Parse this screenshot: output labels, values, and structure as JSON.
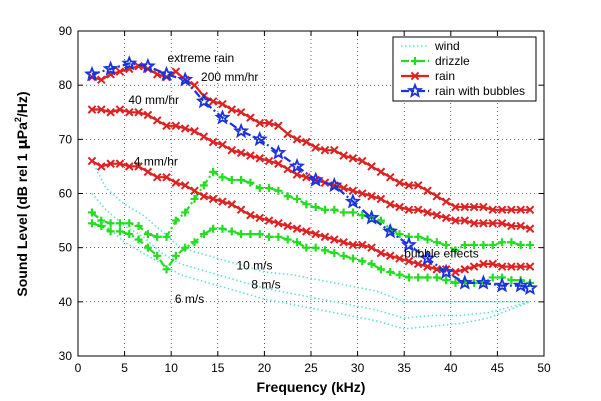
{
  "chart_data": {
    "type": "line",
    "xlabel": "Frequency (kHz)",
    "ylabel_main": "Sound Level (dB rel 1 ",
    "ylabel_mu": "μ",
    "ylabel_pa": "Pa",
    "ylabel_sup": "2",
    "ylabel_end": "/Hz)",
    "xlim": [
      0,
      50
    ],
    "ylim": [
      30,
      90
    ],
    "xticks": [
      0,
      5,
      10,
      15,
      20,
      25,
      30,
      35,
      40,
      45,
      50
    ],
    "yticks": [
      30,
      40,
      50,
      60,
      70,
      80,
      90
    ],
    "grid": true,
    "legend_position": "top-right",
    "colors": {
      "wind": "#66dddd",
      "drizzle": "#22dd22",
      "rain": "#dd2222",
      "rain_bubbles": "#1a33dd"
    },
    "legend": [
      {
        "key": "wind",
        "label": "wind",
        "style": "dotted",
        "marker": "none"
      },
      {
        "key": "drizzle",
        "label": "drizzle",
        "style": "dashdot",
        "marker": "plus"
      },
      {
        "key": "rain",
        "label": "rain",
        "style": "solid",
        "marker": "x"
      },
      {
        "key": "rain_bubbles",
        "label": "rain with bubbles",
        "style": "dashdot",
        "marker": "star"
      }
    ],
    "series": [
      {
        "key": "wind",
        "style": "dotted",
        "marker": "none",
        "x": [
          1.5,
          3,
          5,
          7,
          9,
          11,
          13,
          15,
          17,
          20,
          23,
          26,
          29,
          32,
          35,
          38,
          41,
          44,
          48.5
        ],
        "y": [
          66,
          61,
          58,
          56,
          53,
          50,
          49,
          48,
          47,
          45.5,
          45,
          44,
          43,
          42,
          40,
          40,
          40,
          40,
          40
        ]
      },
      {
        "key": "wind",
        "style": "dotted",
        "marker": "none",
        "x": [
          1.5,
          3,
          5,
          7,
          9,
          11,
          13,
          15,
          17,
          20,
          23,
          26,
          29,
          32,
          35,
          38,
          41,
          44,
          48.5
        ],
        "y": [
          60,
          57,
          54,
          52,
          49,
          47,
          46,
          45,
          44,
          42.5,
          41.5,
          40.5,
          39.5,
          38.5,
          37,
          37.5,
          37.5,
          38,
          40
        ]
      },
      {
        "key": "wind",
        "style": "dotted",
        "marker": "none",
        "x": [
          1.5,
          3,
          5,
          7,
          9,
          11,
          13,
          15,
          17,
          20,
          23,
          26,
          29,
          32,
          35,
          38,
          41,
          44,
          48.5
        ],
        "y": [
          57,
          54,
          51,
          49,
          47,
          45,
          44,
          43,
          42,
          40.5,
          39.5,
          38.5,
          37.5,
          36.5,
          35,
          35.5,
          36,
          37,
          40
        ]
      },
      {
        "key": "drizzle",
        "style": "dashdot",
        "marker": "plus",
        "x": [
          1.5,
          2.5,
          3.5,
          4.5,
          5.5,
          6.5,
          7.5,
          8.5,
          9.5,
          10.5,
          11.5,
          12.5,
          13.5,
          14.5,
          15.5,
          16.5,
          17.5,
          18.5,
          19.5,
          20.5,
          21.5,
          22.5,
          23.5,
          24.5,
          25.5,
          26.5,
          27.5,
          28.5,
          29.5,
          30.5,
          31.5,
          32.5,
          33.5,
          34.5,
          35.5,
          36.5,
          37.5,
          38.5,
          39.5,
          40.5,
          41.5,
          42.5,
          43.5,
          44.5,
          45.5,
          46.5,
          47.5,
          48.5
        ],
        "y": [
          56.5,
          55,
          54.5,
          54.5,
          54.5,
          54,
          52.5,
          52,
          52,
          55,
          56.5,
          59,
          61.5,
          64,
          63,
          62.5,
          62.5,
          62,
          61,
          61,
          60.5,
          59.5,
          59,
          58,
          57.5,
          57,
          57,
          56.5,
          56.5,
          56,
          55.5,
          55,
          53.5,
          52.5,
          52,
          52,
          51.5,
          51,
          50.5,
          49.5,
          50.5,
          50.5,
          50.5,
          50.5,
          51,
          51,
          50.5,
          50.5
        ]
      },
      {
        "key": "drizzle",
        "style": "dashdot",
        "marker": "plus",
        "x": [
          1.5,
          2.5,
          3.5,
          4.5,
          5.5,
          6.5,
          7.5,
          8.5,
          9.5,
          10.5,
          11.5,
          12.5,
          13.5,
          14.5,
          15.5,
          16.5,
          17.5,
          18.5,
          19.5,
          20.5,
          21.5,
          22.5,
          23.5,
          24.5,
          25.5,
          26.5,
          27.5,
          28.5,
          29.5,
          30.5,
          31.5,
          32.5,
          33.5,
          34.5,
          35.5,
          36.5,
          37.5,
          38.5,
          39.5,
          40.5,
          41.5,
          42.5,
          43.5,
          44.5,
          45.5,
          46.5,
          47.5,
          48.5
        ],
        "y": [
          54.5,
          54,
          53,
          53,
          52.5,
          51.5,
          50,
          48.5,
          46,
          48.5,
          50,
          51,
          52.5,
          53.5,
          53.5,
          53,
          52.5,
          52.5,
          52.5,
          52,
          52,
          51.5,
          51,
          50,
          50,
          49.5,
          49,
          48.5,
          48,
          47.5,
          47,
          46,
          45.5,
          45,
          44.5,
          44.5,
          44.5,
          44.5,
          44,
          43.5,
          43.5,
          43.5,
          43.5,
          44.5,
          44.5,
          44,
          44,
          43.5
        ]
      },
      {
        "key": "rain",
        "style": "solid",
        "marker": "x",
        "x": [
          1.5,
          2.5,
          3.5,
          4.5,
          5.5,
          6.5,
          7.5,
          8.5,
          9.5,
          10.5,
          11.5,
          12.5,
          13.5,
          14.5,
          15.5,
          16.5,
          17.5,
          18.5,
          19.5,
          20.5,
          21.5,
          22.5,
          23.5,
          24.5,
          25.5,
          26.5,
          27.5,
          28.5,
          29.5,
          30.5,
          31.5,
          32.5,
          33.5,
          34.5,
          35.5,
          36.5,
          37.5,
          38.5,
          39.5,
          40.5,
          41.5,
          42.5,
          43.5,
          44.5,
          45.5,
          46.5,
          47.5,
          48.5
        ],
        "y": [
          81.5,
          81,
          82,
          82.5,
          83,
          83.5,
          83,
          82,
          81.5,
          82.5,
          81,
          80,
          78,
          77,
          76.5,
          75.5,
          75,
          74,
          73,
          73,
          72.5,
          71,
          70,
          69.5,
          68.5,
          68,
          68,
          67,
          66.5,
          66,
          65,
          64,
          63,
          62,
          61.5,
          61.5,
          60.5,
          59.5,
          58.5,
          57.5,
          57.5,
          57.5,
          57.5,
          57,
          57,
          57,
          57,
          57
        ]
      },
      {
        "key": "rain",
        "style": "solid",
        "marker": "x",
        "x": [
          1.5,
          2.5,
          3.5,
          4.5,
          5.5,
          6.5,
          7.5,
          8.5,
          9.5,
          10.5,
          11.5,
          12.5,
          13.5,
          14.5,
          15.5,
          16.5,
          17.5,
          18.5,
          19.5,
          20.5,
          21.5,
          22.5,
          23.5,
          24.5,
          25.5,
          26.5,
          27.5,
          28.5,
          29.5,
          30.5,
          31.5,
          32.5,
          33.5,
          34.5,
          35.5,
          36.5,
          37.5,
          38.5,
          39.5,
          40.5,
          41.5,
          42.5,
          43.5,
          44.5,
          45.5,
          46.5,
          47.5,
          48.5
        ],
        "y": [
          75.5,
          75.5,
          75,
          75.5,
          75,
          75,
          74.5,
          73.5,
          72.5,
          72.5,
          72,
          71.5,
          70.5,
          69.5,
          69,
          68,
          67.5,
          67,
          66.5,
          66,
          65.5,
          64.5,
          63.5,
          63,
          62.5,
          62,
          61.5,
          61,
          60.5,
          60,
          59.5,
          59,
          58,
          57.5,
          57,
          57,
          56.5,
          56,
          55.5,
          55,
          55,
          54.5,
          54.5,
          54.5,
          54.5,
          54,
          54,
          53.5
        ]
      },
      {
        "key": "rain",
        "style": "solid",
        "marker": "x",
        "x": [
          1.5,
          2.5,
          3.5,
          4.5,
          5.5,
          6.5,
          7.5,
          8.5,
          9.5,
          10.5,
          11.5,
          12.5,
          13.5,
          14.5,
          15.5,
          16.5,
          17.5,
          18.5,
          19.5,
          20.5,
          21.5,
          22.5,
          23.5,
          24.5,
          25.5,
          26.5,
          27.5,
          28.5,
          29.5,
          30.5,
          31.5,
          32.5,
          33.5,
          34.5,
          35.5,
          36.5,
          37.5,
          38.5,
          39.5,
          40.5,
          41.5,
          42.5,
          43.5,
          44.5,
          45.5,
          46.5,
          47.5,
          48.5
        ],
        "y": [
          66,
          65,
          65.5,
          65.5,
          65,
          65,
          64,
          63,
          63,
          62,
          61.5,
          60.5,
          59.5,
          59,
          58.5,
          58,
          57,
          56,
          55.5,
          55,
          54.5,
          54,
          53.5,
          53,
          52.5,
          52,
          51.5,
          51,
          50.5,
          50.5,
          50,
          49,
          48.5,
          48,
          47.5,
          47,
          46.5,
          46,
          46,
          45.5,
          46,
          46.5,
          47,
          47,
          46.5,
          46.5,
          46.5,
          46.5
        ]
      },
      {
        "key": "rain_bubbles",
        "style": "dashdot",
        "marker": "star",
        "x": [
          1.5,
          3.5,
          5.5,
          7.5,
          9.5,
          11.5,
          13.5,
          15.5,
          17.5,
          19.5,
          21.5,
          23.5,
          25.5,
          27.5,
          29.5,
          31.5,
          33.5,
          35.5,
          37.5,
          39.5,
          41.5,
          43.5,
          45.5,
          47.5,
          48.5
        ],
        "y": [
          82,
          83,
          84,
          83.5,
          82,
          81,
          77,
          74,
          71.5,
          70,
          67.5,
          65,
          62.5,
          61.5,
          58.5,
          55.5,
          53,
          50.5,
          48,
          45.5,
          43.5,
          43.5,
          43,
          43,
          42.5
        ]
      }
    ],
    "annotations": [
      {
        "text": "extreme rain",
        "x": 9.6,
        "y": 84.3
      },
      {
        "text": "200 mm/hr",
        "x": 13.2,
        "y": 80.8
      },
      {
        "text": "40 mm/hr",
        "x": 5.4,
        "y": 76.5
      },
      {
        "text": "4 mm/hr",
        "x": 6.0,
        "y": 65.2
      },
      {
        "text": "bubble effects",
        "x": 35.0,
        "y": 48.2
      },
      {
        "text": "10 m/s",
        "x": 17.0,
        "y": 46.0
      },
      {
        "text": "8 m/s",
        "x": 18.6,
        "y": 42.5
      },
      {
        "text": "6 m/s",
        "x": 10.4,
        "y": 39.8
      }
    ]
  }
}
